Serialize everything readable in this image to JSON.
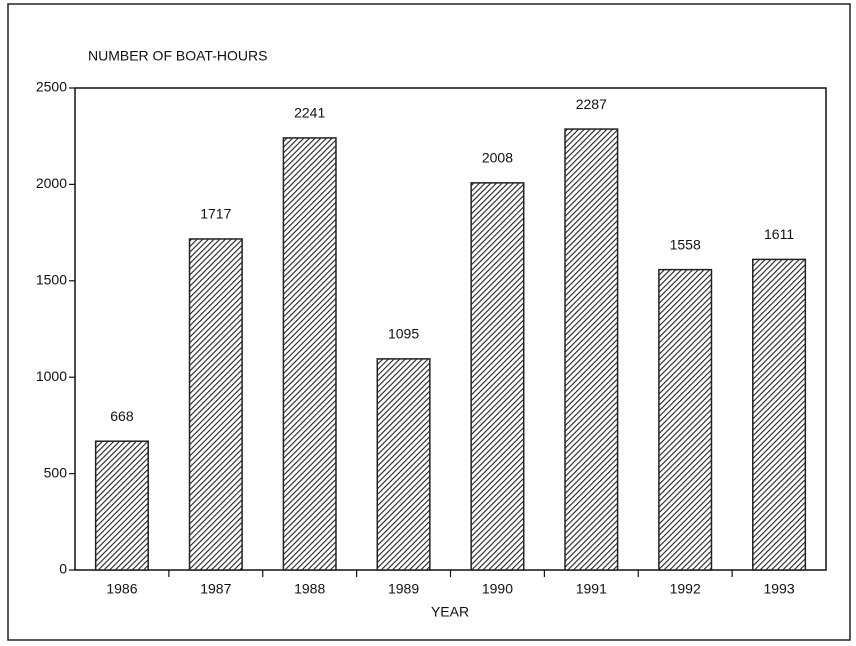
{
  "chart_data": {
    "type": "bar",
    "title": "NUMBER OF BOAT-HOURS",
    "x_label": "YEAR",
    "categories": [
      "1986",
      "1987",
      "1988",
      "1989",
      "1990",
      "1991",
      "1992",
      "1993"
    ],
    "values": [
      668,
      1717,
      2241,
      1095,
      2008,
      2287,
      1558,
      1611
    ],
    "color": "#222222",
    "ylim": [
      0,
      2500
    ],
    "yticks": [
      0,
      500,
      1000,
      1500,
      2000,
      2500
    ],
    "grid": false
  }
}
